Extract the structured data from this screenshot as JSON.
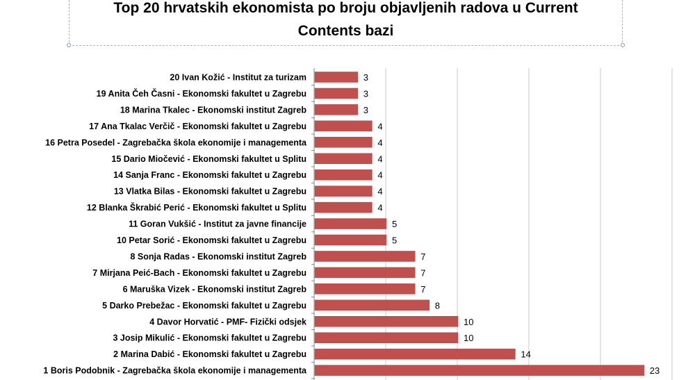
{
  "chart_data": {
    "type": "bar",
    "orientation": "horizontal",
    "title": "Top 20 hrvatskih ekonomista po broju objavljenih radova u Current\nContents bazi",
    "xlim": [
      0,
      25
    ],
    "grid": true,
    "bar_color": "#c0504d",
    "categories": [
      "20 Ivan Kožić - Institut za turizam",
      "19 Anita Čeh Časni - Ekonomski fakultet u Zagrebu",
      "18 Marina Tkalec - Ekonomski institut Zagreb",
      "17 Ana Tkalac Verčič - Ekonomski fakultet u Zagrebu",
      "16 Petra Posedel - Zagrebačka škola ekonomije i managementa",
      "15 Dario Miočević - Ekonomski fakultet u Splitu",
      "14 Sanja Franc - Ekonomski fakultet u Zagrebu",
      "13 Vlatka Bilas - Ekonomski fakultet u Zagrebu",
      "12 Blanka Škrabić Perić - Ekonomski fakultet u Splitu",
      "11 Goran Vukšić - Institut za javne financije",
      "10 Petar Sorić - Ekonomski fakultet u Zagrebu",
      "8 Sonja Radas - Ekonomski institut Zagreb",
      "7 Mirjana Peić-Bach - Ekonomski fakultet u Zagrebu",
      "6 Maruška Vizek - Ekonomski institut Zagreb",
      "5 Darko Prebežac - Ekonomski fakultet u Zagrebu",
      "4 Davor Horvatić - PMF- Fizički odsjek",
      "3 Josip Mikulić - Ekonomski fakultet u Zagrebu",
      "2 Marina Dabić - Ekonomski fakultet u Zagrebu",
      "1 Boris Podobnik - Zagrebačka škola ekonomije i managementa"
    ],
    "values": [
      3,
      3,
      3,
      4,
      4,
      4,
      4,
      4,
      4,
      5,
      5,
      7,
      7,
      7,
      8,
      10,
      10,
      14,
      23
    ]
  }
}
